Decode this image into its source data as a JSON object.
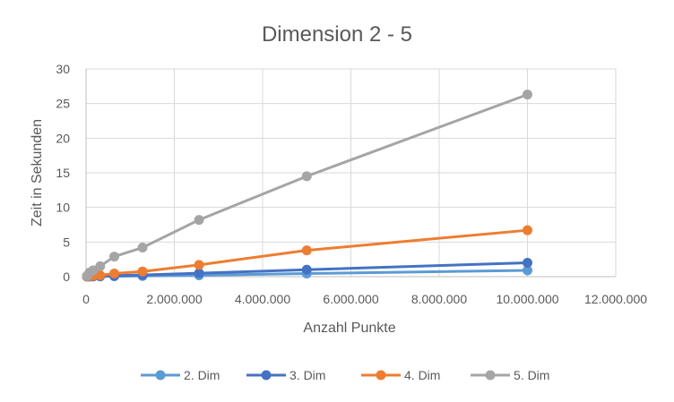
{
  "chart_data": {
    "type": "line",
    "title": "Dimension 2 - 5",
    "xlabel": "Anzahl Punkte",
    "ylabel": "Zeit in Sekunden",
    "xlim": [
      0,
      12000000
    ],
    "ylim": [
      0,
      30
    ],
    "x_ticks": [
      0,
      2000000,
      4000000,
      6000000,
      8000000,
      10000000,
      12000000
    ],
    "x_tick_labels": [
      "0",
      "2.000.000",
      "4.000.000",
      "6.000.000",
      "8.000.000",
      "10.000.000",
      "12.000.000"
    ],
    "y_ticks": [
      0,
      5,
      10,
      15,
      20,
      25,
      30
    ],
    "y_tick_labels": [
      "0",
      "5",
      "10",
      "15",
      "20",
      "25",
      "30"
    ],
    "grid": true,
    "legend_position": "bottom",
    "x": [
      20000,
      40000,
      80000,
      160000,
      320000,
      640000,
      1280000,
      2560000,
      5000000,
      10000000
    ],
    "series": [
      {
        "name": "2. Dim",
        "color": "#5b9bd5",
        "values": [
          0.0,
          0.0,
          0.01,
          0.01,
          0.03,
          0.05,
          0.1,
          0.2,
          0.45,
          0.9
        ]
      },
      {
        "name": "3. Dim",
        "color": "#4472c4",
        "values": [
          0.01,
          0.02,
          0.03,
          0.05,
          0.08,
          0.15,
          0.25,
          0.5,
          1.0,
          2.0
        ]
      },
      {
        "name": "4. Dim",
        "color": "#ed7d31",
        "values": [
          0.02,
          0.04,
          0.08,
          0.12,
          0.2,
          0.45,
          0.75,
          1.7,
          3.8,
          6.7
        ]
      },
      {
        "name": "5. Dim",
        "color": "#a5a5a5",
        "values": [
          0.1,
          0.2,
          0.6,
          0.9,
          1.5,
          2.9,
          4.2,
          8.2,
          14.5,
          26.3
        ]
      }
    ]
  }
}
